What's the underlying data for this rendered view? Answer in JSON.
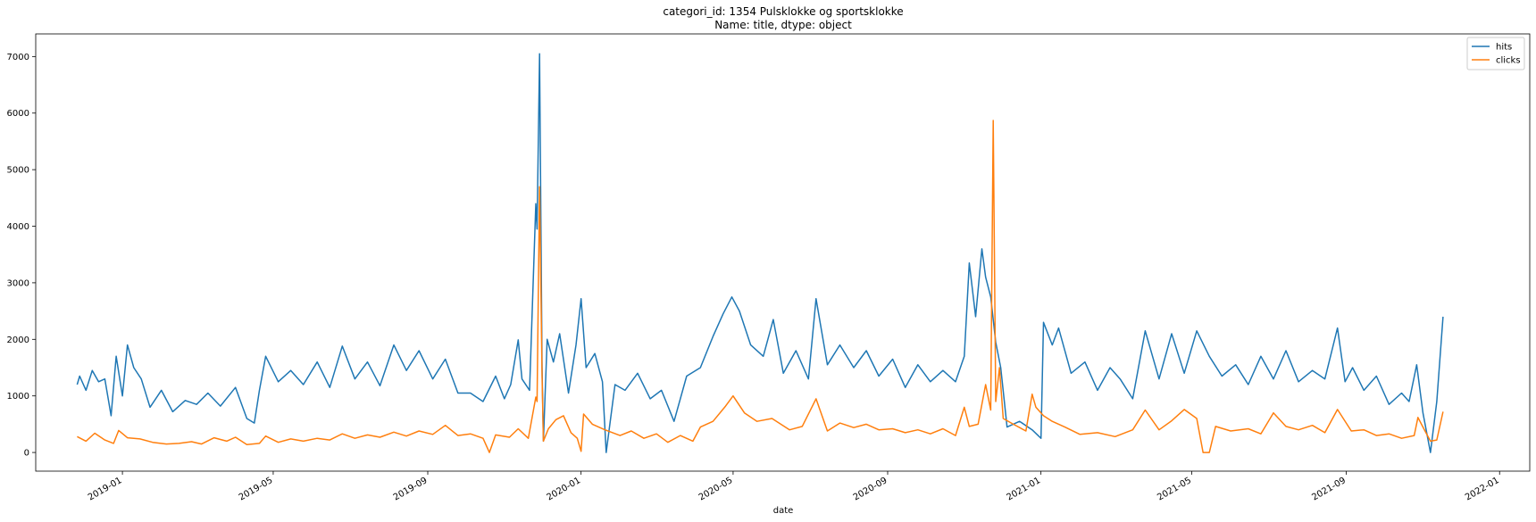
{
  "chart_data": {
    "type": "line",
    "title": "categori_id: 1354    Pulsklokke og sportsklokke",
    "subtitle": "Name: title, dtype: object",
    "xlabel": "date",
    "ylabel": "",
    "x_range": [
      "2018-10-24",
      "2022-01-25"
    ],
    "ylim": [
      -330,
      7400
    ],
    "x_ticks": [
      "2019-01",
      "2019-05",
      "2019-09",
      "2020-01",
      "2020-05",
      "2020-09",
      "2021-01",
      "2021-05",
      "2021-09",
      "2022-01"
    ],
    "y_ticks": [
      0,
      1000,
      2000,
      3000,
      4000,
      5000,
      6000,
      7000
    ],
    "grid": false,
    "legend": {
      "placement": "top-right",
      "entries": [
        "hits",
        "clicks"
      ]
    },
    "colors": {
      "hits": "#1f77b4",
      "clicks": "#ff7f0e"
    },
    "series": [
      {
        "name": "hits",
        "points": [
          [
            "2018-11-26",
            1200
          ],
          [
            "2018-11-28",
            1350
          ],
          [
            "2018-12-03",
            1100
          ],
          [
            "2018-12-08",
            1450
          ],
          [
            "2018-12-13",
            1250
          ],
          [
            "2018-12-18",
            1300
          ],
          [
            "2018-12-23",
            650
          ],
          [
            "2018-12-27",
            1700
          ],
          [
            "2019-01-01",
            1000
          ],
          [
            "2019-01-05",
            1900
          ],
          [
            "2019-01-10",
            1500
          ],
          [
            "2019-01-16",
            1300
          ],
          [
            "2019-01-23",
            800
          ],
          [
            "2019-02-01",
            1100
          ],
          [
            "2019-02-10",
            720
          ],
          [
            "2019-02-20",
            920
          ],
          [
            "2019-03-01",
            850
          ],
          [
            "2019-03-10",
            1050
          ],
          [
            "2019-03-20",
            820
          ],
          [
            "2019-04-01",
            1150
          ],
          [
            "2019-04-10",
            600
          ],
          [
            "2019-04-16",
            520
          ],
          [
            "2019-04-20",
            1100
          ],
          [
            "2019-04-25",
            1700
          ],
          [
            "2019-05-05",
            1250
          ],
          [
            "2019-05-15",
            1450
          ],
          [
            "2019-05-25",
            1200
          ],
          [
            "2019-06-05",
            1600
          ],
          [
            "2019-06-15",
            1150
          ],
          [
            "2019-06-25",
            1880
          ],
          [
            "2019-07-05",
            1300
          ],
          [
            "2019-07-15",
            1600
          ],
          [
            "2019-07-25",
            1180
          ],
          [
            "2019-08-05",
            1900
          ],
          [
            "2019-08-15",
            1450
          ],
          [
            "2019-08-25",
            1800
          ],
          [
            "2019-09-05",
            1300
          ],
          [
            "2019-09-15",
            1650
          ],
          [
            "2019-09-25",
            1050
          ],
          [
            "2019-10-05",
            1050
          ],
          [
            "2019-10-15",
            900
          ],
          [
            "2019-10-25",
            1350
          ],
          [
            "2019-11-01",
            950
          ],
          [
            "2019-11-06",
            1200
          ],
          [
            "2019-11-12",
            1990
          ],
          [
            "2019-11-15",
            1300
          ],
          [
            "2019-11-21",
            1100
          ],
          [
            "2019-11-26",
            4400
          ],
          [
            "2019-11-27",
            3950
          ],
          [
            "2019-11-29",
            7050
          ],
          [
            "2019-12-01",
            1500
          ],
          [
            "2019-12-02",
            200
          ],
          [
            "2019-12-05",
            2000
          ],
          [
            "2019-12-10",
            1600
          ],
          [
            "2019-12-15",
            2100
          ],
          [
            "2019-12-22",
            1050
          ],
          [
            "2019-12-28",
            1900
          ],
          [
            "2020-01-01",
            2720
          ],
          [
            "2020-01-05",
            1500
          ],
          [
            "2020-01-12",
            1750
          ],
          [
            "2020-01-18",
            1250
          ],
          [
            "2020-01-21",
            0
          ],
          [
            "2020-01-28",
            1200
          ],
          [
            "2020-02-05",
            1100
          ],
          [
            "2020-02-15",
            1400
          ],
          [
            "2020-02-25",
            950
          ],
          [
            "2020-03-05",
            1100
          ],
          [
            "2020-03-15",
            550
          ],
          [
            "2020-03-25",
            1350
          ],
          [
            "2020-04-05",
            1500
          ],
          [
            "2020-04-15",
            2050
          ],
          [
            "2020-04-23",
            2450
          ],
          [
            "2020-04-30",
            2750
          ],
          [
            "2020-05-06",
            2500
          ],
          [
            "2020-05-15",
            1900
          ],
          [
            "2020-05-25",
            1700
          ],
          [
            "2020-06-02",
            2350
          ],
          [
            "2020-06-10",
            1400
          ],
          [
            "2020-06-20",
            1800
          ],
          [
            "2020-06-30",
            1300
          ],
          [
            "2020-07-06",
            2720
          ],
          [
            "2020-07-15",
            1550
          ],
          [
            "2020-07-25",
            1900
          ],
          [
            "2020-08-05",
            1500
          ],
          [
            "2020-08-15",
            1800
          ],
          [
            "2020-08-25",
            1350
          ],
          [
            "2020-09-05",
            1650
          ],
          [
            "2020-09-15",
            1150
          ],
          [
            "2020-09-25",
            1550
          ],
          [
            "2020-10-05",
            1250
          ],
          [
            "2020-10-15",
            1450
          ],
          [
            "2020-10-25",
            1250
          ],
          [
            "2020-11-01",
            1700
          ],
          [
            "2020-11-05",
            3350
          ],
          [
            "2020-11-10",
            2400
          ],
          [
            "2020-11-15",
            3600
          ],
          [
            "2020-11-18",
            3100
          ],
          [
            "2020-11-22",
            2750
          ],
          [
            "2020-11-26",
            1950
          ],
          [
            "2020-11-30",
            1500
          ],
          [
            "2020-12-05",
            450
          ],
          [
            "2020-12-15",
            550
          ],
          [
            "2020-12-25",
            400
          ],
          [
            "2021-01-01",
            250
          ],
          [
            "2021-01-03",
            2300
          ],
          [
            "2021-01-10",
            1900
          ],
          [
            "2021-01-15",
            2200
          ],
          [
            "2021-01-25",
            1400
          ],
          [
            "2021-02-05",
            1600
          ],
          [
            "2021-02-15",
            1100
          ],
          [
            "2021-02-25",
            1500
          ],
          [
            "2021-03-05",
            1300
          ],
          [
            "2021-03-15",
            950
          ],
          [
            "2021-03-25",
            2150
          ],
          [
            "2021-04-05",
            1300
          ],
          [
            "2021-04-15",
            2100
          ],
          [
            "2021-04-25",
            1400
          ],
          [
            "2021-05-05",
            2150
          ],
          [
            "2021-05-15",
            1700
          ],
          [
            "2021-05-25",
            1350
          ],
          [
            "2021-06-05",
            1550
          ],
          [
            "2021-06-15",
            1200
          ],
          [
            "2021-06-25",
            1700
          ],
          [
            "2021-07-05",
            1300
          ],
          [
            "2021-07-15",
            1800
          ],
          [
            "2021-07-25",
            1250
          ],
          [
            "2021-08-05",
            1450
          ],
          [
            "2021-08-15",
            1300
          ],
          [
            "2021-08-25",
            2200
          ],
          [
            "2021-08-31",
            1250
          ],
          [
            "2021-09-06",
            1500
          ],
          [
            "2021-09-15",
            1100
          ],
          [
            "2021-09-25",
            1350
          ],
          [
            "2021-10-05",
            850
          ],
          [
            "2021-10-15",
            1050
          ],
          [
            "2021-10-21",
            900
          ],
          [
            "2021-10-27",
            1550
          ],
          [
            "2021-11-01",
            700
          ],
          [
            "2021-11-07",
            0
          ],
          [
            "2021-11-12",
            900
          ],
          [
            "2021-11-17",
            2400
          ]
        ]
      },
      {
        "name": "clicks",
        "points": [
          [
            "2018-11-26",
            280
          ],
          [
            "2018-12-03",
            200
          ],
          [
            "2018-12-10",
            340
          ],
          [
            "2018-12-18",
            220
          ],
          [
            "2018-12-25",
            160
          ],
          [
            "2018-12-29",
            390
          ],
          [
            "2019-01-05",
            260
          ],
          [
            "2019-01-15",
            240
          ],
          [
            "2019-01-25",
            180
          ],
          [
            "2019-02-05",
            150
          ],
          [
            "2019-02-15",
            160
          ],
          [
            "2019-02-25",
            190
          ],
          [
            "2019-03-05",
            150
          ],
          [
            "2019-03-15",
            260
          ],
          [
            "2019-03-25",
            200
          ],
          [
            "2019-04-01",
            270
          ],
          [
            "2019-04-10",
            140
          ],
          [
            "2019-04-20",
            160
          ],
          [
            "2019-04-25",
            290
          ],
          [
            "2019-05-05",
            180
          ],
          [
            "2019-05-15",
            240
          ],
          [
            "2019-05-25",
            200
          ],
          [
            "2019-06-05",
            250
          ],
          [
            "2019-06-15",
            220
          ],
          [
            "2019-06-25",
            330
          ],
          [
            "2019-07-05",
            250
          ],
          [
            "2019-07-15",
            310
          ],
          [
            "2019-07-25",
            270
          ],
          [
            "2019-08-05",
            360
          ],
          [
            "2019-08-15",
            290
          ],
          [
            "2019-08-25",
            380
          ],
          [
            "2019-09-05",
            320
          ],
          [
            "2019-09-15",
            480
          ],
          [
            "2019-09-25",
            300
          ],
          [
            "2019-10-05",
            330
          ],
          [
            "2019-10-15",
            250
          ],
          [
            "2019-10-20",
            0
          ],
          [
            "2019-10-25",
            310
          ],
          [
            "2019-11-05",
            270
          ],
          [
            "2019-11-12",
            420
          ],
          [
            "2019-11-20",
            250
          ],
          [
            "2019-11-26",
            980
          ],
          [
            "2019-11-27",
            900
          ],
          [
            "2019-11-29",
            4700
          ],
          [
            "2019-12-01",
            1350
          ],
          [
            "2019-12-02",
            200
          ],
          [
            "2019-12-06",
            420
          ],
          [
            "2019-12-12",
            580
          ],
          [
            "2019-12-18",
            650
          ],
          [
            "2019-12-24",
            350
          ],
          [
            "2019-12-29",
            250
          ],
          [
            "2020-01-01",
            20
          ],
          [
            "2020-01-03",
            680
          ],
          [
            "2020-01-10",
            500
          ],
          [
            "2020-01-20",
            400
          ],
          [
            "2020-02-01",
            300
          ],
          [
            "2020-02-10",
            380
          ],
          [
            "2020-02-20",
            250
          ],
          [
            "2020-03-01",
            330
          ],
          [
            "2020-03-10",
            180
          ],
          [
            "2020-03-20",
            300
          ],
          [
            "2020-03-30",
            200
          ],
          [
            "2020-04-05",
            450
          ],
          [
            "2020-04-15",
            550
          ],
          [
            "2020-04-25",
            820
          ],
          [
            "2020-05-01",
            1000
          ],
          [
            "2020-05-10",
            700
          ],
          [
            "2020-05-20",
            550
          ],
          [
            "2020-06-01",
            600
          ],
          [
            "2020-06-15",
            400
          ],
          [
            "2020-06-25",
            460
          ],
          [
            "2020-07-06",
            950
          ],
          [
            "2020-07-15",
            380
          ],
          [
            "2020-07-25",
            520
          ],
          [
            "2020-08-05",
            440
          ],
          [
            "2020-08-15",
            500
          ],
          [
            "2020-08-25",
            400
          ],
          [
            "2020-09-05",
            420
          ],
          [
            "2020-09-15",
            350
          ],
          [
            "2020-09-25",
            400
          ],
          [
            "2020-10-05",
            330
          ],
          [
            "2020-10-15",
            420
          ],
          [
            "2020-10-25",
            300
          ],
          [
            "2020-11-01",
            800
          ],
          [
            "2020-11-05",
            460
          ],
          [
            "2020-11-12",
            500
          ],
          [
            "2020-11-18",
            1200
          ],
          [
            "2020-11-22",
            750
          ],
          [
            "2020-11-24",
            5870
          ],
          [
            "2020-11-26",
            900
          ],
          [
            "2020-11-29",
            1500
          ],
          [
            "2020-12-02",
            600
          ],
          [
            "2020-12-10",
            500
          ],
          [
            "2020-12-20",
            380
          ],
          [
            "2020-12-25",
            1030
          ],
          [
            "2020-12-28",
            800
          ],
          [
            "2021-01-03",
            650
          ],
          [
            "2021-01-10",
            550
          ],
          [
            "2021-01-20",
            450
          ],
          [
            "2021-02-01",
            320
          ],
          [
            "2021-02-15",
            350
          ],
          [
            "2021-03-01",
            280
          ],
          [
            "2021-03-15",
            400
          ],
          [
            "2021-03-25",
            750
          ],
          [
            "2021-04-05",
            400
          ],
          [
            "2021-04-15",
            560
          ],
          [
            "2021-04-25",
            760
          ],
          [
            "2021-05-05",
            600
          ],
          [
            "2021-05-10",
            0
          ],
          [
            "2021-05-15",
            0
          ],
          [
            "2021-05-20",
            460
          ],
          [
            "2021-06-01",
            380
          ],
          [
            "2021-06-15",
            420
          ],
          [
            "2021-06-25",
            330
          ],
          [
            "2021-07-05",
            700
          ],
          [
            "2021-07-15",
            460
          ],
          [
            "2021-07-25",
            400
          ],
          [
            "2021-08-05",
            480
          ],
          [
            "2021-08-15",
            350
          ],
          [
            "2021-08-25",
            760
          ],
          [
            "2021-09-05",
            380
          ],
          [
            "2021-09-15",
            400
          ],
          [
            "2021-09-25",
            300
          ],
          [
            "2021-10-05",
            330
          ],
          [
            "2021-10-15",
            250
          ],
          [
            "2021-10-25",
            300
          ],
          [
            "2021-10-28",
            620
          ],
          [
            "2021-11-01",
            450
          ],
          [
            "2021-11-07",
            200
          ],
          [
            "2021-11-12",
            220
          ],
          [
            "2021-11-17",
            720
          ]
        ]
      }
    ]
  }
}
